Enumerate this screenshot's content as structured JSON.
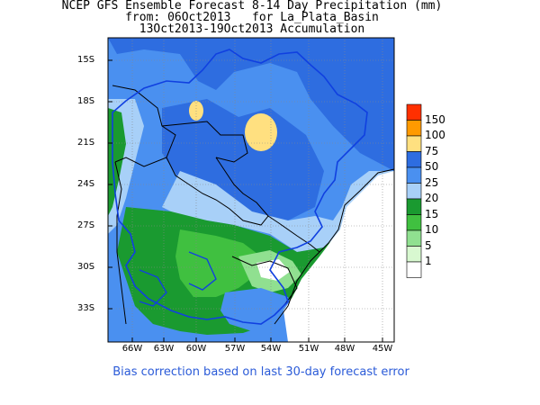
{
  "title": {
    "line1": "NCEP GFS Ensemble Forecast 8-14 Day Precipitation (mm)",
    "line2": "from: 06Oct2013   for La_Plata_Basin",
    "line3": "13Oct2013-19Oct2013 Accumulation"
  },
  "axes": {
    "lat_labels": [
      "15S",
      "18S",
      "21S",
      "24S",
      "27S",
      "30S",
      "33S"
    ],
    "lon_labels": [
      "66W",
      "63W",
      "60W",
      "57W",
      "54W",
      "51W",
      "48W",
      "45W"
    ]
  },
  "colorbar": {
    "levels": [
      "150",
      "100",
      "75",
      "50",
      "25",
      "20",
      "15",
      "10",
      "5",
      "1"
    ],
    "colors": [
      "#ff3000",
      "#ff9a00",
      "#ffe080",
      "#2e6de0",
      "#4a90f0",
      "#a8d0f8",
      "#1a9a30",
      "#40c040",
      "#90e090",
      "#d8f8d0",
      "#ffffff"
    ]
  },
  "footer": "Bias correction based on last 30-day forecast error"
}
